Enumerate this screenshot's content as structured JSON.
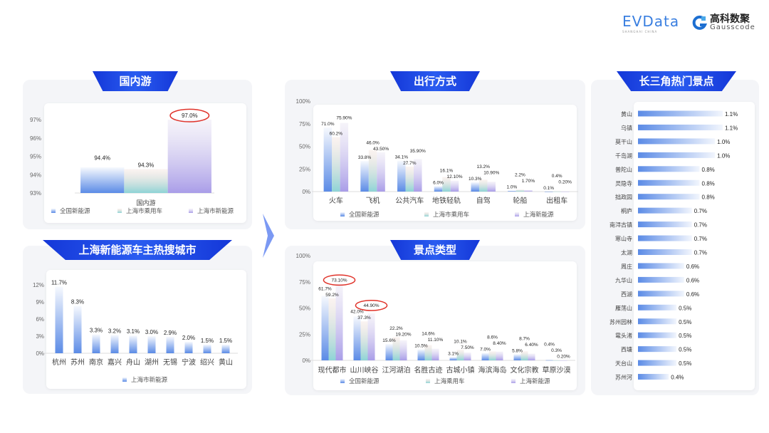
{
  "logos": {
    "evdata": "EVData",
    "evdata_sub": "SHANGHAI CHINA",
    "gauss_cn": "高科数聚",
    "gauss_en": "Gausscode"
  },
  "titles": {
    "domestic": "国内游",
    "cities": "上海新能源车主热搜城市",
    "transport": "出行方式",
    "scenic_type": "景点类型",
    "hotspots": "长三角热门景点"
  },
  "colors": {
    "series_blue": "#5b8be6",
    "series_teal": "#8ed4d6",
    "series_purple": "#a99de8",
    "banner": "#1a44e0",
    "highlight_circle": "#e0332a"
  },
  "chart_data": [
    {
      "type": "bar",
      "categories": [
        "国内游"
      ],
      "ylim": [
        93,
        97.6
      ],
      "yticks": [
        93,
        94,
        95,
        96,
        97
      ],
      "ytick_labels": [
        "93%",
        "94%",
        "95%",
        "96%",
        "97%"
      ],
      "series": [
        {
          "name": "全国新能源",
          "values": [
            94.4
          ],
          "labels": [
            "94.4%"
          ]
        },
        {
          "name": "上海市乘用车",
          "values": [
            94.3
          ],
          "labels": [
            "94.3%"
          ]
        },
        {
          "name": "上海市新能源",
          "values": [
            97.0
          ],
          "labels": [
            "97.0%"
          ]
        }
      ],
      "highlighted": [
        "97.0%"
      ],
      "legend": "bottom"
    },
    {
      "type": "bar",
      "categories": [
        "杭州",
        "苏州",
        "南京",
        "嘉兴",
        "舟山",
        "湖州",
        "无锡",
        "宁波",
        "绍兴",
        "黄山"
      ],
      "ylim": [
        0,
        12
      ],
      "yticks": [
        0,
        3,
        6,
        9,
        12
      ],
      "ytick_labels": [
        "0%",
        "3%",
        "6%",
        "9%",
        "12%"
      ],
      "series": [
        {
          "name": "上海市新能源",
          "values": [
            11.7,
            8.3,
            3.3,
            3.2,
            3.1,
            3.0,
            2.9,
            2.0,
            1.5,
            1.5
          ],
          "labels": [
            "11.7%",
            "8.3%",
            "3.3%",
            "3.2%",
            "3.1%",
            "3.0%",
            "2.9%",
            "2.0%",
            "1.5%",
            "1.5%"
          ]
        }
      ],
      "legend": "bottom"
    },
    {
      "type": "bar",
      "categories": [
        "火车",
        "飞机",
        "公共汽车",
        "地铁轻轨",
        "自驾",
        "轮船",
        "出租车"
      ],
      "ylim": [
        0,
        100
      ],
      "yticks": [
        0,
        25,
        50,
        75,
        100
      ],
      "ytick_labels": [
        "0%",
        "25%",
        "50%",
        "75%",
        "100%"
      ],
      "series": [
        {
          "name": "全国新能源",
          "values": [
            71.0,
            33.8,
            34.1,
            6.0,
            10.3,
            1.0,
            0.1
          ],
          "labels": [
            "71.0%",
            "33.8%",
            "34.1%",
            "6.0%",
            "10.3%",
            "1.0%",
            "0.1%"
          ]
        },
        {
          "name": "上海市乘用车",
          "values": [
            60.2,
            46.0,
            27.7,
            16.1,
            13.2,
            2.2,
            0.4
          ],
          "labels": [
            "60.2%",
            "46.0%",
            "27.7%",
            "16.1%",
            "13.2%",
            "2.2%",
            "0.4%"
          ]
        },
        {
          "name": "上海新能源",
          "values": [
            75.9,
            43.5,
            35.9,
            12.1,
            10.9,
            1.7,
            0.2
          ],
          "labels": [
            "75.90%",
            "43.50%",
            "35.90%",
            "12.10%",
            "10.90%",
            "1.70%",
            "0.20%"
          ]
        }
      ],
      "legend": "bottom"
    },
    {
      "type": "bar",
      "categories": [
        "现代都市",
        "山川峡谷",
        "江河湖泊",
        "名胜古迹",
        "古城小镇",
        "海滨海岛",
        "文化宗教",
        "草原沙漠"
      ],
      "ylim": [
        0,
        100
      ],
      "yticks": [
        0,
        25,
        50,
        75,
        100
      ],
      "ytick_labels": [
        "0%",
        "25%",
        "50%",
        "75%",
        "100%"
      ],
      "series": [
        {
          "name": "全国新能源",
          "values": [
            61.7,
            42.0,
            15.6,
            10.5,
            3.1,
            7.0,
            5.8,
            0.4
          ],
          "labels": [
            "61.7%",
            "42.0%",
            "15.6%",
            "10.5%",
            "3.1%",
            "7.0%",
            "5.8%",
            "0.4%"
          ]
        },
        {
          "name": "上海乘用车",
          "values": [
            59.2,
            37.3,
            22.2,
            14.6,
            10.1,
            8.6,
            8.7,
            0.3
          ],
          "labels": [
            "59.2%",
            "37.3%",
            "22.2%",
            "14.6%",
            "10.1%",
            "8.6%",
            "8.7%",
            "0.3%"
          ]
        },
        {
          "name": "上海新能源",
          "values": [
            73.1,
            44.9,
            19.2,
            11.1,
            7.5,
            8.4,
            6.4,
            0.2
          ],
          "labels": [
            "73.10%",
            "44.90%",
            "19.20%",
            "11.10%",
            "7.50%",
            "8.40%",
            "6.40%",
            "0.20%"
          ]
        }
      ],
      "highlighted": [
        "73.10%",
        "44.90%"
      ],
      "legend": "bottom"
    },
    {
      "type": "bar",
      "orientation": "horizontal",
      "categories": [
        "黄山",
        "乌镇",
        "莫干山",
        "千岛湖",
        "普陀山",
        "灵隐寺",
        "拙政园",
        "桐庐",
        "南浔古镇",
        "寒山寺",
        "太湖",
        "周庄",
        "九华山",
        "西湖",
        "雁荡山",
        "苏州园林",
        "鼋头渚",
        "西塘",
        "天台山",
        "苏州河"
      ],
      "values": [
        1.1,
        1.1,
        1.0,
        1.0,
        0.8,
        0.8,
        0.8,
        0.7,
        0.7,
        0.7,
        0.7,
        0.6,
        0.6,
        0.6,
        0.5,
        0.5,
        0.5,
        0.5,
        0.5,
        0.4
      ],
      "labels": [
        "1.1%",
        "1.1%",
        "1.0%",
        "1.0%",
        "0.8%",
        "0.8%",
        "0.8%",
        "0.7%",
        "0.7%",
        "0.7%",
        "0.7%",
        "0.6%",
        "0.6%",
        "0.6%",
        "0.5%",
        "0.5%",
        "0.5%",
        "0.5%",
        "0.5%",
        "0.4%"
      ]
    }
  ]
}
